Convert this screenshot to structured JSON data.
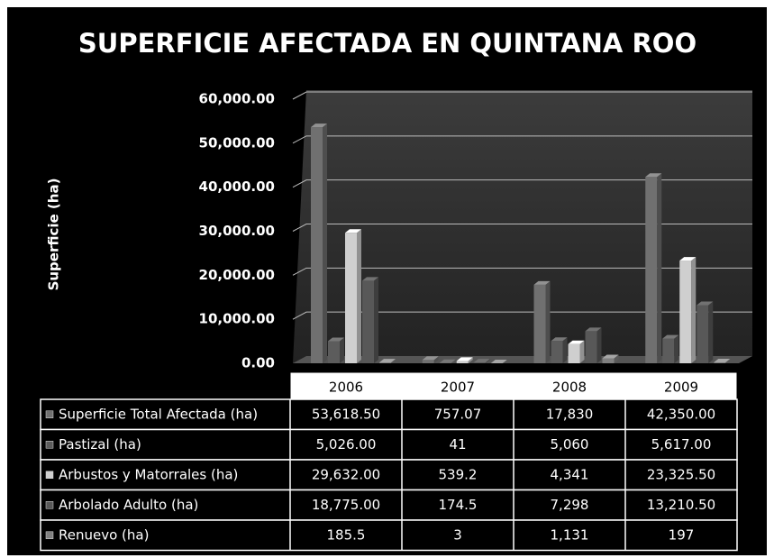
{
  "chart_data": {
    "type": "bar",
    "title": "SUPERFICIE AFECTADA EN QUINTANA ROO",
    "y_label": "Superficie (ha)",
    "categories": [
      "2006",
      "2007",
      "2008",
      "2009"
    ],
    "series": [
      {
        "name": "Superficie Total Afectada (ha)",
        "color": "#707070",
        "values": [
          53618.5,
          757.07,
          17830,
          42350
        ],
        "value_labels": [
          "53,618.50",
          "757.07",
          "17,830",
          "42,350.00"
        ]
      },
      {
        "name": "Pastizal (ha)",
        "color": "#5c5c5c",
        "values": [
          5026,
          41,
          5060,
          5617
        ],
        "value_labels": [
          "5,026.00",
          "41",
          "5,060",
          "5,617.00"
        ]
      },
      {
        "name": "Arbustos y Matorrales (ha)",
        "color": "#cfcfcf",
        "values": [
          29632,
          539.2,
          4341,
          23325.5
        ],
        "value_labels": [
          "29,632.00",
          "539.2",
          "4,341",
          "23,325.50"
        ]
      },
      {
        "name": "Arbolado Adulto (ha)",
        "color": "#585858",
        "values": [
          18775,
          174.5,
          7298,
          13210.5
        ],
        "value_labels": [
          "18,775.00",
          "174.5",
          "7,298",
          "13,210.50"
        ]
      },
      {
        "name": "Renuevo (ha)",
        "color": "#808080",
        "values": [
          185.5,
          3,
          1131,
          197
        ],
        "value_labels": [
          "185.5",
          "3",
          "1,131",
          "197"
        ]
      }
    ],
    "ylim": [
      0,
      60000
    ],
    "yticks": [
      {
        "value": 0,
        "label": "0.00"
      },
      {
        "value": 10000,
        "label": "10,000.00"
      },
      {
        "value": 20000,
        "label": "20,000.00"
      },
      {
        "value": 30000,
        "label": "30,000.00"
      },
      {
        "value": 40000,
        "label": "40,000.00"
      },
      {
        "value": 50000,
        "label": "50,000.00"
      },
      {
        "value": 60000,
        "label": "60,000.00"
      }
    ],
    "grid": true
  }
}
